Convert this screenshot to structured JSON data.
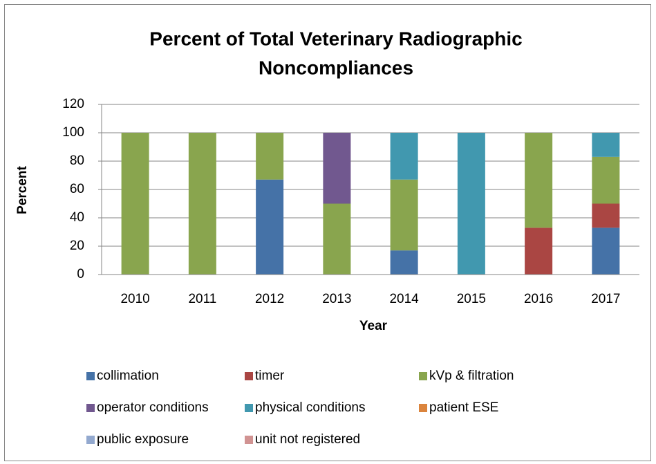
{
  "chart_data": {
    "type": "stacked_bar",
    "title": [
      "Percent of Total Veterinary Radiographic",
      "Noncompliances"
    ],
    "x_label": "Year",
    "y_label": "Percent",
    "categories": [
      "2010",
      "2011",
      "2012",
      "2013",
      "2014",
      "2015",
      "2016",
      "2017"
    ],
    "series": [
      {
        "name": "collimation",
        "color": "#4572a7",
        "values": [
          0,
          0,
          67,
          0,
          17,
          0,
          0,
          33
        ]
      },
      {
        "name": "timer",
        "color": "#aa4643",
        "values": [
          0,
          0,
          0,
          0,
          0,
          0,
          33,
          17
        ]
      },
      {
        "name": "kVp & filtration",
        "color": "#89a54e",
        "values": [
          100,
          100,
          33,
          50,
          50,
          0,
          67,
          33
        ]
      },
      {
        "name": "operator conditions",
        "color": "#71588f",
        "values": [
          0,
          0,
          0,
          50,
          0,
          0,
          0,
          0
        ]
      },
      {
        "name": "physical conditions",
        "color": "#4198af",
        "values": [
          0,
          0,
          0,
          0,
          33,
          100,
          0,
          17
        ]
      },
      {
        "name": "patient ESE",
        "color": "#db843d",
        "values": [
          0,
          0,
          0,
          0,
          0,
          0,
          0,
          0
        ]
      },
      {
        "name": "public exposure",
        "color": "#93a9cf",
        "values": [
          0,
          0,
          0,
          0,
          0,
          0,
          0,
          0
        ]
      },
      {
        "name": "unit not registered",
        "color": "#d19392",
        "values": [
          0,
          0,
          0,
          0,
          0,
          0,
          0,
          0
        ]
      }
    ],
    "ylim": [
      0,
      120
    ],
    "yticks": [
      0,
      20,
      40,
      60,
      80,
      100,
      120
    ],
    "grid": true,
    "legend": "bottom"
  }
}
